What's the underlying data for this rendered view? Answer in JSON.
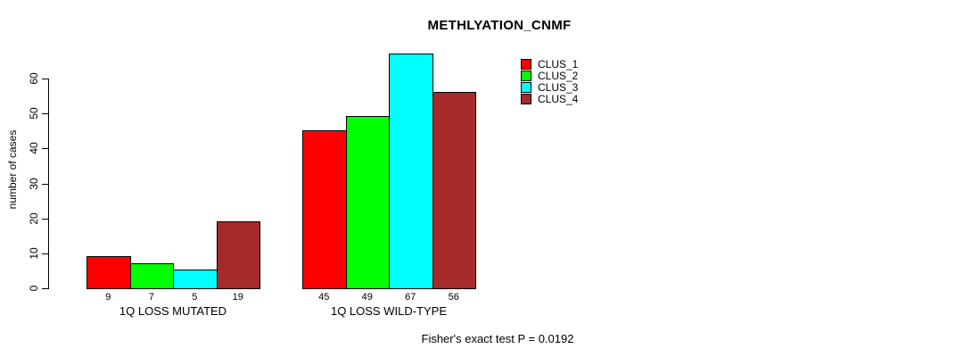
{
  "chart_data": {
    "type": "bar",
    "title": "METHLYATION_CNMF",
    "ylabel": "number of cases",
    "xlabel": "",
    "ylim": [
      0,
      67
    ],
    "yticks": [
      0,
      10,
      20,
      30,
      40,
      50,
      60
    ],
    "grid": false,
    "legend_position": "right-top",
    "bar_value_labels": true,
    "bar_border_color": "#000000",
    "background_color": "#ffffff",
    "categories": [
      "1Q LOSS MUTATED",
      "1Q LOSS WILD-TYPE"
    ],
    "series": [
      {
        "name": "CLUS_1",
        "color": "#ff0000",
        "values": [
          9,
          45
        ]
      },
      {
        "name": "CLUS_2",
        "color": "#00ff00",
        "values": [
          7,
          49
        ]
      },
      {
        "name": "CLUS_3",
        "color": "#00ffff",
        "values": [
          5,
          67
        ]
      },
      {
        "name": "CLUS_4",
        "color": "#a52a2a",
        "values": [
          19,
          56
        ]
      }
    ],
    "annotation": "Fisher's exact test P = 0.0192"
  }
}
